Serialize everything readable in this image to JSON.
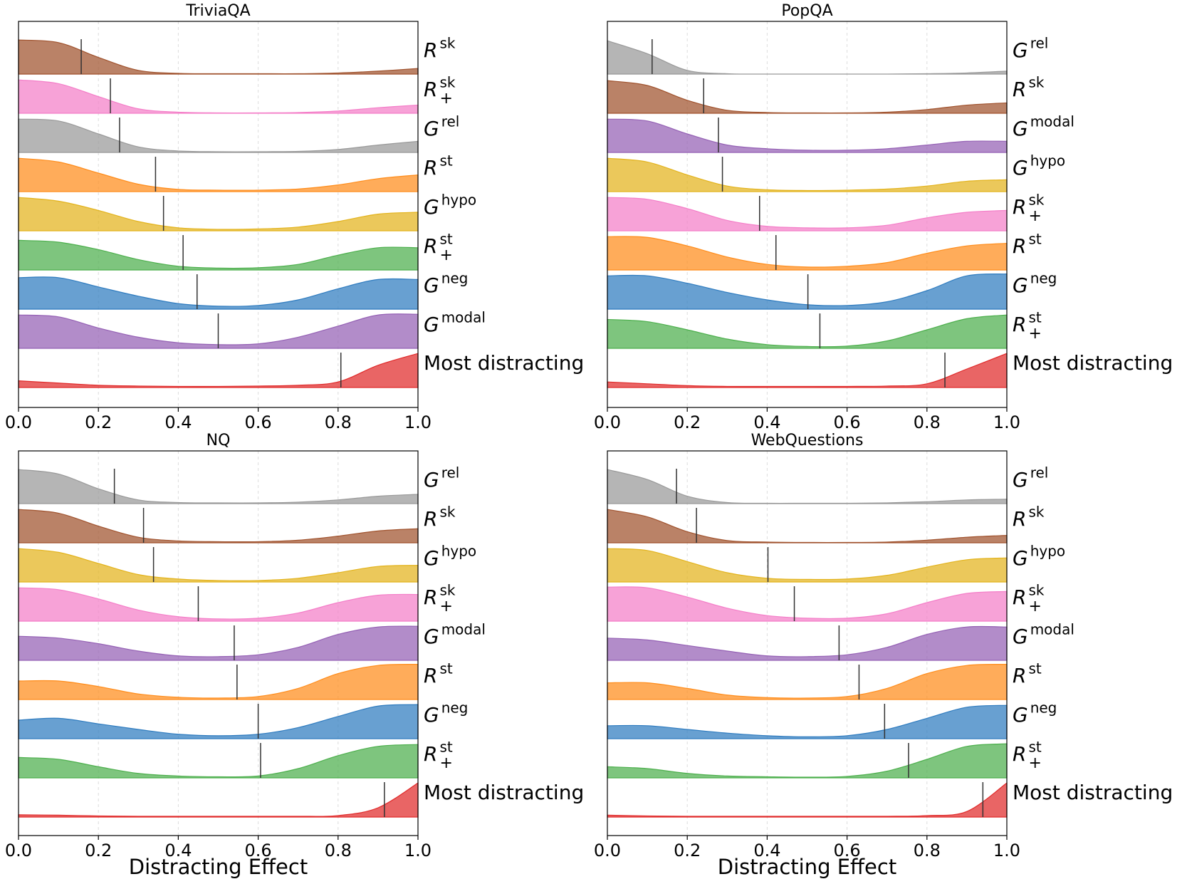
{
  "chart_data": [
    {
      "type": "ridgeline",
      "title": "TriviaQA",
      "xlim": [
        0,
        1
      ],
      "xticks": [
        {
          "value": 0,
          "label": "0.0"
        },
        0.2,
        0.4,
        0.6,
        0.8,
        {
          "value": 1,
          "label": "1.0"
        }
      ],
      "grid": true,
      "density_x": [
        0,
        0.1,
        0.2,
        0.3,
        0.4,
        0.5,
        0.6,
        0.7,
        0.8,
        0.9,
        1
      ],
      "rows": [
        {
          "label": "R",
          "sup": "sk",
          "color": "#a0522d",
          "mean": 0.157,
          "density": [
            0.92,
            0.85,
            0.45,
            0.1,
            0.02,
            0.01,
            0.01,
            0.01,
            0.03,
            0.08,
            0.15
          ]
        },
        {
          "label": "R",
          "sup": "sk",
          "sub": "+",
          "color": "#f47ec8",
          "mean": 0.23,
          "density": [
            0.9,
            0.8,
            0.45,
            0.12,
            0.03,
            0.01,
            0.01,
            0.02,
            0.06,
            0.15,
            0.22
          ]
        },
        {
          "label": "G",
          "sup": "rel",
          "color": "#999999",
          "mean": 0.253,
          "density": [
            0.9,
            0.85,
            0.5,
            0.15,
            0.04,
            0.02,
            0.02,
            0.03,
            0.08,
            0.2,
            0.3
          ]
        },
        {
          "label": "R",
          "sup": "st",
          "color": "#ff8c1a",
          "mean": 0.343,
          "density": [
            0.9,
            0.8,
            0.5,
            0.2,
            0.06,
            0.04,
            0.04,
            0.07,
            0.18,
            0.35,
            0.45
          ]
        },
        {
          "label": "G",
          "sup": "hypo",
          "color": "#e3b31c",
          "mean": 0.363,
          "density": [
            0.9,
            0.8,
            0.55,
            0.25,
            0.08,
            0.04,
            0.05,
            0.1,
            0.25,
            0.45,
            0.5
          ]
        },
        {
          "label": "R",
          "sup": "st",
          "sub": "+",
          "color": "#4caf4c",
          "mean": 0.412,
          "density": [
            0.8,
            0.75,
            0.55,
            0.28,
            0.1,
            0.05,
            0.06,
            0.15,
            0.4,
            0.6,
            0.6
          ]
        },
        {
          "label": "G",
          "sup": "neg",
          "color": "#2e7bbf",
          "mean": 0.447,
          "density": [
            0.85,
            0.85,
            0.6,
            0.35,
            0.15,
            0.08,
            0.1,
            0.25,
            0.55,
            0.8,
            0.8
          ]
        },
        {
          "label": "G",
          "sup": "modal",
          "color": "#9460b4",
          "mean": 0.5,
          "density": [
            0.9,
            0.85,
            0.55,
            0.3,
            0.15,
            0.1,
            0.12,
            0.3,
            0.6,
            0.9,
            0.92
          ]
        },
        {
          "label": "Most distracting",
          "color": "#e02a2a",
          "mean": 0.807,
          "density": [
            0.18,
            0.12,
            0.06,
            0.04,
            0.03,
            0.03,
            0.04,
            0.06,
            0.15,
            0.6,
            0.92
          ]
        }
      ]
    },
    {
      "type": "ridgeline",
      "title": "PopQA",
      "xlim": [
        0,
        1
      ],
      "xticks": [
        {
          "value": 0,
          "label": "0.0"
        },
        0.2,
        0.4,
        0.6,
        0.8,
        {
          "value": 1,
          "label": "1.0"
        }
      ],
      "grid": true,
      "density_x": [
        0,
        0.1,
        0.2,
        0.3,
        0.4,
        0.5,
        0.6,
        0.7,
        0.8,
        0.9,
        1
      ],
      "rows": [
        {
          "label": "G",
          "sup": "rel",
          "color": "#999999",
          "mean": 0.112,
          "density": [
            0.9,
            0.55,
            0.1,
            0.01,
            0,
            0,
            0,
            0,
            0.01,
            0.03,
            0.08
          ]
        },
        {
          "label": "R",
          "sup": "sk",
          "color": "#a0522d",
          "mean": 0.241,
          "density": [
            0.88,
            0.75,
            0.35,
            0.08,
            0.02,
            0.01,
            0.01,
            0.03,
            0.1,
            0.22,
            0.28
          ]
        },
        {
          "label": "G",
          "sup": "modal",
          "color": "#9460b4",
          "mean": 0.278,
          "density": [
            0.9,
            0.85,
            0.5,
            0.2,
            0.1,
            0.06,
            0.06,
            0.1,
            0.2,
            0.3,
            0.3
          ]
        },
        {
          "label": "G",
          "sup": "hypo",
          "color": "#e3b31c",
          "mean": 0.288,
          "density": [
            0.9,
            0.8,
            0.45,
            0.15,
            0.05,
            0.03,
            0.04,
            0.07,
            0.15,
            0.28,
            0.32
          ]
        },
        {
          "label": "R",
          "sup": "sk",
          "sub": "+",
          "color": "#f47ec8",
          "mean": 0.381,
          "density": [
            0.9,
            0.85,
            0.6,
            0.28,
            0.12,
            0.08,
            0.08,
            0.15,
            0.35,
            0.5,
            0.55
          ]
        },
        {
          "label": "R",
          "sup": "st",
          "color": "#ff8c1a",
          "mean": 0.422,
          "density": [
            0.9,
            0.88,
            0.65,
            0.35,
            0.15,
            0.08,
            0.1,
            0.2,
            0.45,
            0.65,
            0.72
          ]
        },
        {
          "label": "G",
          "sup": "neg",
          "color": "#2e7bbf",
          "mean": 0.502,
          "density": [
            0.9,
            0.9,
            0.7,
            0.45,
            0.25,
            0.12,
            0.1,
            0.2,
            0.5,
            0.9,
            0.95
          ]
        },
        {
          "label": "R",
          "sup": "st",
          "sub": "+",
          "color": "#4caf4c",
          "mean": 0.532,
          "density": [
            0.78,
            0.72,
            0.5,
            0.25,
            0.1,
            0.05,
            0.06,
            0.2,
            0.5,
            0.8,
            0.9
          ]
        },
        {
          "label": "Most distracting",
          "color": "#e02a2a",
          "mean": 0.845,
          "density": [
            0.15,
            0.1,
            0.05,
            0.03,
            0.03,
            0.03,
            0.03,
            0.04,
            0.1,
            0.5,
            0.92
          ]
        }
      ]
    },
    {
      "type": "ridgeline",
      "title": "NQ",
      "xlim": [
        0,
        1
      ],
      "xlabel": "Distracting Effect",
      "xticks": [
        {
          "value": 0,
          "label": "0.0"
        },
        0.2,
        0.4,
        0.6,
        0.8,
        {
          "value": 1,
          "label": "1.0"
        }
      ],
      "grid": true,
      "density_x": [
        0,
        0.1,
        0.2,
        0.3,
        0.4,
        0.5,
        0.6,
        0.7,
        0.8,
        0.9,
        1
      ],
      "rows": [
        {
          "label": "G",
          "sup": "rel",
          "color": "#999999",
          "mean": 0.24,
          "density": [
            0.92,
            0.8,
            0.4,
            0.1,
            0.03,
            0.02,
            0.02,
            0.04,
            0.1,
            0.2,
            0.25
          ]
        },
        {
          "label": "R",
          "sup": "sk",
          "color": "#a0522d",
          "mean": 0.313,
          "density": [
            0.9,
            0.8,
            0.45,
            0.15,
            0.05,
            0.03,
            0.03,
            0.07,
            0.18,
            0.32,
            0.38
          ]
        },
        {
          "label": "G",
          "sup": "hypo",
          "color": "#e3b31c",
          "mean": 0.338,
          "density": [
            0.9,
            0.8,
            0.5,
            0.2,
            0.08,
            0.04,
            0.04,
            0.1,
            0.25,
            0.42,
            0.45
          ]
        },
        {
          "label": "R",
          "sup": "sk",
          "sub": "+",
          "color": "#f47ec8",
          "mean": 0.45,
          "density": [
            0.9,
            0.85,
            0.6,
            0.3,
            0.12,
            0.06,
            0.08,
            0.22,
            0.5,
            0.7,
            0.72
          ]
        },
        {
          "label": "G",
          "sup": "modal",
          "color": "#9460b4",
          "mean": 0.54,
          "density": [
            0.65,
            0.6,
            0.45,
            0.25,
            0.12,
            0.1,
            0.15,
            0.35,
            0.7,
            0.9,
            0.92
          ]
        },
        {
          "label": "R",
          "sup": "st",
          "color": "#ff8c1a",
          "mean": 0.547,
          "density": [
            0.5,
            0.5,
            0.35,
            0.15,
            0.06,
            0.04,
            0.08,
            0.3,
            0.7,
            0.92,
            0.95
          ]
        },
        {
          "label": "G",
          "sup": "neg",
          "color": "#2e7bbf",
          "mean": 0.6,
          "density": [
            0.5,
            0.55,
            0.4,
            0.25,
            0.12,
            0.08,
            0.12,
            0.3,
            0.6,
            0.88,
            0.92
          ]
        },
        {
          "label": "R",
          "sup": "st",
          "sub": "+",
          "color": "#4caf4c",
          "mean": 0.606,
          "density": [
            0.55,
            0.5,
            0.3,
            0.12,
            0.05,
            0.03,
            0.05,
            0.25,
            0.6,
            0.85,
            0.9
          ]
        },
        {
          "label": "Most distracting",
          "color": "#e02a2a",
          "mean": 0.916,
          "density": [
            0.06,
            0.05,
            0.03,
            0.02,
            0.02,
            0.02,
            0.02,
            0.02,
            0.04,
            0.25,
            0.92
          ]
        }
      ]
    },
    {
      "type": "ridgeline",
      "title": "WebQuestions",
      "xlim": [
        0,
        1
      ],
      "xlabel": "Distracting Effect",
      "xticks": [
        {
          "value": 0,
          "label": "0.0"
        },
        0.2,
        0.4,
        0.6,
        0.8,
        {
          "value": 1,
          "label": "1.0"
        }
      ],
      "grid": true,
      "density_x": [
        0,
        0.1,
        0.2,
        0.3,
        0.4,
        0.5,
        0.6,
        0.7,
        0.8,
        0.9,
        1
      ],
      "rows": [
        {
          "label": "G",
          "sup": "rel",
          "color": "#999999",
          "mean": 0.173,
          "density": [
            0.92,
            0.65,
            0.2,
            0.03,
            0.01,
            0.01,
            0.01,
            0.02,
            0.05,
            0.1,
            0.12
          ]
        },
        {
          "label": "R",
          "sup": "sk",
          "color": "#a0522d",
          "mean": 0.223,
          "density": [
            0.9,
            0.7,
            0.3,
            0.06,
            0.02,
            0.01,
            0.01,
            0.02,
            0.07,
            0.15,
            0.2
          ]
        },
        {
          "label": "G",
          "sup": "hypo",
          "color": "#e3b31c",
          "mean": 0.402,
          "density": [
            0.9,
            0.85,
            0.55,
            0.25,
            0.1,
            0.07,
            0.08,
            0.18,
            0.4,
            0.6,
            0.65
          ]
        },
        {
          "label": "R",
          "sup": "sk",
          "sub": "+",
          "color": "#f47ec8",
          "mean": 0.468,
          "density": [
            0.92,
            0.9,
            0.65,
            0.35,
            0.15,
            0.08,
            0.08,
            0.2,
            0.5,
            0.75,
            0.8
          ]
        },
        {
          "label": "G",
          "sup": "modal",
          "color": "#9460b4",
          "mean": 0.58,
          "density": [
            0.6,
            0.55,
            0.4,
            0.25,
            0.12,
            0.1,
            0.15,
            0.35,
            0.7,
            0.9,
            0.9
          ]
        },
        {
          "label": "R",
          "sup": "st",
          "color": "#ff8c1a",
          "mean": 0.63,
          "density": [
            0.45,
            0.45,
            0.3,
            0.12,
            0.05,
            0.04,
            0.08,
            0.3,
            0.7,
            0.92,
            0.95
          ]
        },
        {
          "label": "G",
          "sup": "neg",
          "color": "#2e7bbf",
          "mean": 0.694,
          "density": [
            0.35,
            0.35,
            0.25,
            0.15,
            0.08,
            0.05,
            0.08,
            0.25,
            0.55,
            0.85,
            0.9
          ]
        },
        {
          "label": "R",
          "sup": "st",
          "sub": "+",
          "color": "#4caf4c",
          "mean": 0.754,
          "density": [
            0.3,
            0.25,
            0.12,
            0.05,
            0.03,
            0.02,
            0.04,
            0.18,
            0.5,
            0.85,
            0.92
          ]
        },
        {
          "label": "Most distracting",
          "color": "#e02a2a",
          "mean": 0.94,
          "density": [
            0.05,
            0.03,
            0.02,
            0.02,
            0.02,
            0.02,
            0.02,
            0.02,
            0.04,
            0.15,
            0.92
          ]
        }
      ]
    }
  ]
}
